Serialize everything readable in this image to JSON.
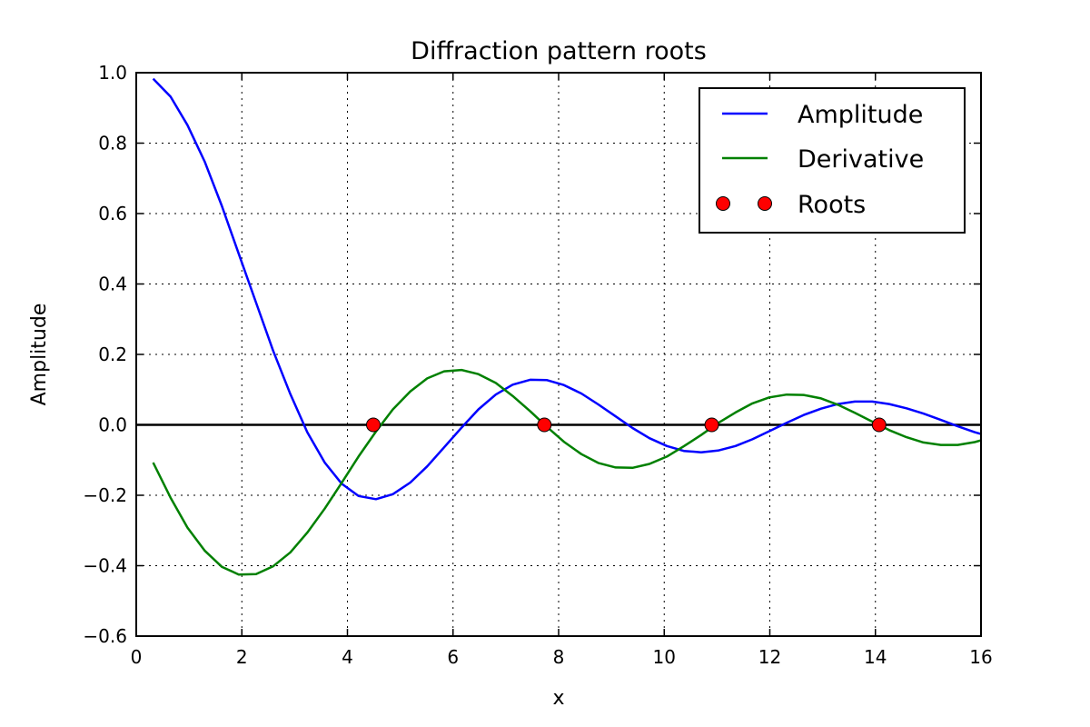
{
  "chart_data": {
    "type": "line",
    "title": "Diffraction pattern roots",
    "xlabel": "x",
    "ylabel": "Amplitude",
    "xlim": [
      0,
      16
    ],
    "ylim": [
      -0.6,
      1.0
    ],
    "x_ticks": [
      0,
      2,
      4,
      6,
      8,
      10,
      12,
      14,
      16
    ],
    "x_tick_labels": [
      "0",
      "2",
      "4",
      "6",
      "8",
      "10",
      "12",
      "14",
      "16"
    ],
    "y_ticks": [
      -0.6,
      -0.4,
      -0.2,
      0.0,
      0.2,
      0.4,
      0.6,
      0.8,
      1.0
    ],
    "y_tick_labels": [
      "−0.6",
      "−0.4",
      "−0.2",
      "0.0",
      "0.2",
      "0.4",
      "0.6",
      "0.8",
      "1.0"
    ],
    "grid": true,
    "legend_position": "top-right",
    "zero_line": true,
    "series": [
      {
        "name": "Amplitude",
        "color": "#0000ff",
        "kind": "line",
        "x": [
          0.32,
          0.65,
          0.97,
          1.3,
          1.62,
          1.94,
          2.27,
          2.59,
          2.92,
          3.24,
          3.57,
          3.89,
          4.21,
          4.54,
          4.86,
          5.19,
          5.51,
          5.83,
          6.16,
          6.48,
          6.81,
          7.13,
          7.46,
          7.78,
          8.1,
          8.43,
          8.75,
          9.08,
          9.4,
          9.72,
          10.05,
          10.37,
          10.7,
          11.02,
          11.35,
          11.67,
          11.99,
          12.32,
          12.64,
          12.97,
          13.29,
          13.61,
          13.94,
          14.26,
          14.59,
          14.91,
          15.24,
          15.56,
          15.88,
          16.0
        ],
        "y": [
          0.983,
          0.932,
          0.851,
          0.746,
          0.622,
          0.486,
          0.347,
          0.212,
          0.087,
          -0.021,
          -0.107,
          -0.167,
          -0.202,
          -0.211,
          -0.197,
          -0.164,
          -0.118,
          -0.064,
          -0.008,
          0.044,
          0.086,
          0.114,
          0.128,
          0.127,
          0.113,
          0.089,
          0.058,
          0.024,
          -0.009,
          -0.038,
          -0.06,
          -0.074,
          -0.078,
          -0.073,
          -0.06,
          -0.041,
          -0.018,
          0.006,
          0.028,
          0.046,
          0.059,
          0.066,
          0.066,
          0.059,
          0.047,
          0.032,
          0.014,
          -0.004,
          -0.021,
          -0.026
        ]
      },
      {
        "name": "Derivative",
        "color": "#008000",
        "kind": "line",
        "x": [
          0.32,
          0.65,
          0.97,
          1.3,
          1.62,
          1.94,
          2.27,
          2.59,
          2.92,
          3.24,
          3.57,
          3.89,
          4.21,
          4.54,
          4.86,
          5.19,
          5.51,
          5.83,
          6.16,
          6.48,
          6.81,
          7.13,
          7.46,
          7.78,
          8.1,
          8.43,
          8.75,
          9.08,
          9.4,
          9.72,
          10.05,
          10.37,
          10.7,
          11.02,
          11.35,
          11.67,
          11.99,
          12.32,
          12.64,
          12.97,
          13.29,
          13.61,
          13.94,
          14.26,
          14.59,
          14.91,
          15.24,
          15.56,
          15.88,
          16.0
        ],
        "y": [
          -0.107,
          -0.207,
          -0.292,
          -0.358,
          -0.403,
          -0.425,
          -0.424,
          -0.402,
          -0.362,
          -0.306,
          -0.238,
          -0.165,
          -0.09,
          -0.019,
          0.044,
          0.095,
          0.132,
          0.152,
          0.156,
          0.144,
          0.119,
          0.082,
          0.039,
          -0.006,
          -0.048,
          -0.083,
          -0.108,
          -0.121,
          -0.122,
          -0.111,
          -0.09,
          -0.061,
          -0.029,
          0.005,
          0.035,
          0.061,
          0.078,
          0.086,
          0.085,
          0.075,
          0.057,
          0.034,
          0.009,
          -0.015,
          -0.035,
          -0.05,
          -0.057,
          -0.057,
          -0.049,
          -0.044
        ]
      },
      {
        "name": "Roots",
        "color": "#ff0000",
        "kind": "scatter",
        "x": [
          4.49,
          7.73,
          10.9,
          14.07
        ],
        "y": [
          0,
          0,
          0,
          0
        ]
      }
    ]
  }
}
